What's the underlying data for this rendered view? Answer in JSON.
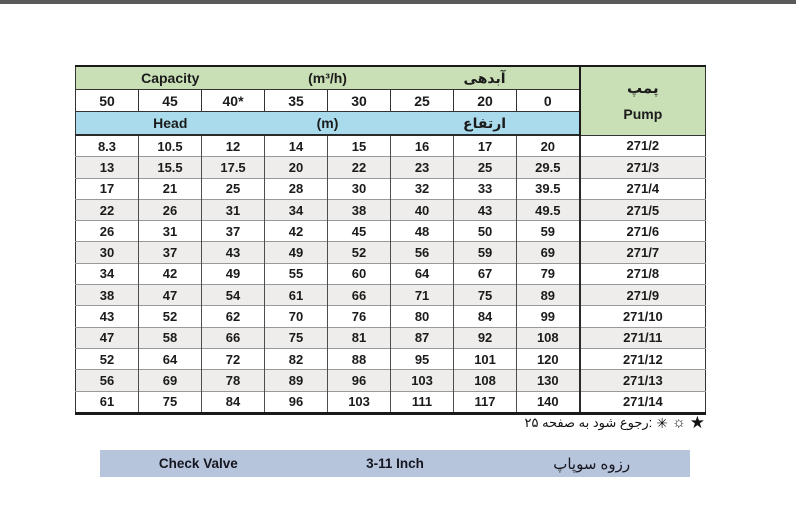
{
  "table": {
    "capacity_row": {
      "en": "Capacity",
      "unit": "(m³/h)",
      "fa": "آبدهی"
    },
    "head_row": {
      "en": "Head",
      "unit": "(m)",
      "fa": "ارتفاع"
    },
    "pump_header": {
      "fa": "پمپ",
      "en": "Pump"
    },
    "flow_columns": [
      "50",
      "45",
      "40*",
      "35",
      "30",
      "25",
      "20",
      "0"
    ],
    "rows": [
      {
        "values": [
          "8.3",
          "10.5",
          "12",
          "14",
          "15",
          "16",
          "17",
          "20"
        ],
        "pump": "271/2"
      },
      {
        "values": [
          "13",
          "15.5",
          "17.5",
          "20",
          "22",
          "23",
          "25",
          "29.5"
        ],
        "pump": "271/3"
      },
      {
        "values": [
          "17",
          "21",
          "25",
          "28",
          "30",
          "32",
          "33",
          "39.5"
        ],
        "pump": "271/4"
      },
      {
        "values": [
          "22",
          "26",
          "31",
          "34",
          "38",
          "40",
          "43",
          "49.5"
        ],
        "pump": "271/5"
      },
      {
        "values": [
          "26",
          "31",
          "37",
          "42",
          "45",
          "48",
          "50",
          "59"
        ],
        "pump": "271/6"
      },
      {
        "values": [
          "30",
          "37",
          "43",
          "49",
          "52",
          "56",
          "59",
          "69"
        ],
        "pump": "271/7"
      },
      {
        "values": [
          "34",
          "42",
          "49",
          "55",
          "60",
          "64",
          "67",
          "79"
        ],
        "pump": "271/8"
      },
      {
        "values": [
          "38",
          "47",
          "54",
          "61",
          "66",
          "71",
          "75",
          "89"
        ],
        "pump": "271/9"
      },
      {
        "values": [
          "43",
          "52",
          "62",
          "70",
          "76",
          "80",
          "84",
          "99"
        ],
        "pump": "271/10"
      },
      {
        "values": [
          "47",
          "58",
          "66",
          "75",
          "81",
          "87",
          "92",
          "108"
        ],
        "pump": "271/11"
      },
      {
        "values": [
          "52",
          "64",
          "72",
          "82",
          "88",
          "95",
          "101",
          "120"
        ],
        "pump": "271/12"
      },
      {
        "values": [
          "56",
          "69",
          "78",
          "89",
          "96",
          "103",
          "108",
          "130"
        ],
        "pump": "271/13"
      },
      {
        "values": [
          "61",
          "75",
          "84",
          "96",
          "103",
          "111",
          "117",
          "140"
        ],
        "pump": "271/14"
      }
    ]
  },
  "footnote": {
    "star": "★",
    "sun": "☼",
    "asterisk": "✳",
    "text": ":رجوع شود به صفحه ۲۵"
  },
  "bottom_bar": {
    "left": "Check Valve",
    "center": "3-11 Inch",
    "right": "رزوه سوپاپ"
  },
  "colors": {
    "top_bar": "#595959",
    "header_green": "#c9dfb6",
    "header_blue": "#a9dbec",
    "pump_purple": "#a9a4c4",
    "row_alt": "#eeedeb",
    "bottom_bar_blue": "#b6c4dc",
    "border_dark": "#1a1a1a",
    "border_gray": "#999999"
  }
}
